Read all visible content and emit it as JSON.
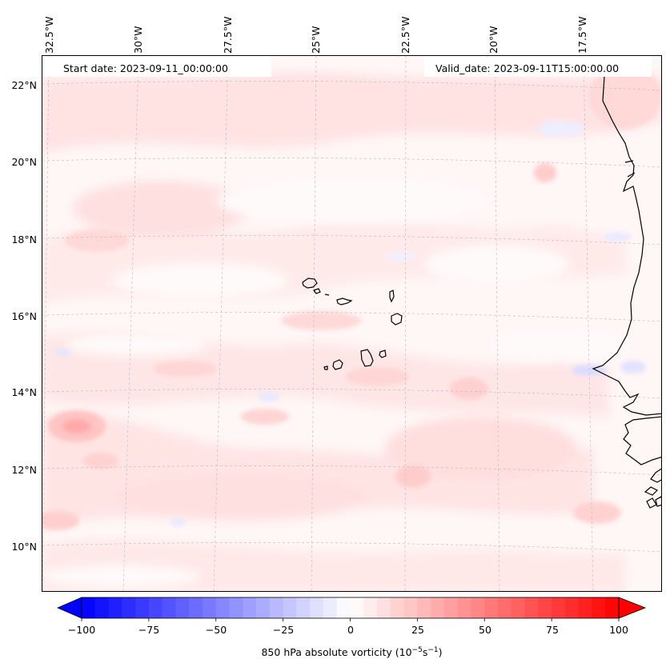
{
  "header": {
    "start_date": "Start date: 2023-09-11_00:00:00",
    "valid_date": "Valid_date: 2023-09-11T15:00:00.00"
  },
  "map": {
    "longitude_labels": [
      "32.5°W",
      "30°W",
      "27.5°W",
      "25°W",
      "22.5°W",
      "20°W",
      "17.5°W"
    ],
    "latitude_labels": [
      "22°N",
      "20°N",
      "18°N",
      "16°N",
      "14°N",
      "12°N",
      "10°N"
    ],
    "field": "850 hPa absolute vorticity",
    "coastline_color": "#000000",
    "gridline_color": "#b0b0b0"
  },
  "colorbar": {
    "ticks": [
      "−100",
      "−75",
      "−50",
      "−25",
      "0",
      "25",
      "50",
      "75",
      "100"
    ],
    "label_main": "850 hPa absolute vorticity (10",
    "label_exp1": "−5",
    "label_mid": "s",
    "label_exp2": "−1",
    "label_end": ")",
    "min_color": "#0000ff",
    "mid_color": "#ffffff",
    "max_color": "#ff0000",
    "extend": "both"
  }
}
